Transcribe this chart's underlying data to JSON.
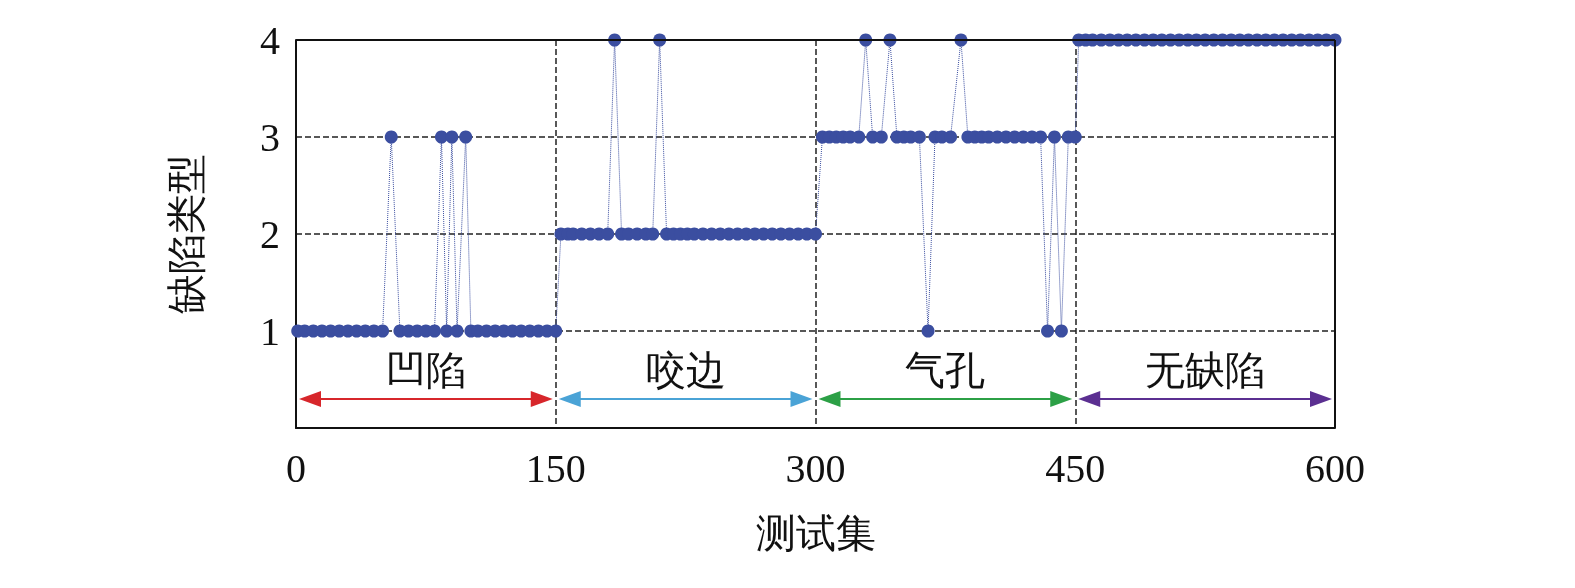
{
  "chart_data": {
    "type": "line",
    "xlabel": "测试集",
    "ylabel": "缺陷类型",
    "xlim": [
      0,
      600
    ],
    "xticks": [
      0,
      150,
      300,
      450,
      600
    ],
    "ylim": [
      0,
      4
    ],
    "yticks": [
      1,
      2,
      3,
      4
    ],
    "grid": true,
    "marker": "circle",
    "line_style": "dotted",
    "series": [
      {
        "color": "#3b4ea0",
        "x": [
          1,
          5,
          10,
          15,
          20,
          25,
          30,
          35,
          40,
          45,
          50,
          55,
          60,
          65,
          70,
          75,
          80,
          84,
          87,
          90,
          93,
          98,
          101,
          105,
          110,
          115,
          120,
          125,
          130,
          135,
          140,
          145,
          150,
          153,
          157,
          160,
          165,
          170,
          175,
          180,
          184,
          188,
          192,
          197,
          202,
          206,
          210,
          214,
          218,
          222,
          226,
          230,
          235,
          240,
          245,
          250,
          255,
          260,
          265,
          270,
          275,
          280,
          285,
          290,
          295,
          300,
          304,
          308,
          312,
          316,
          320,
          325,
          329,
          333,
          338,
          343,
          347,
          351,
          355,
          360,
          365,
          369,
          373,
          378,
          384,
          388,
          392,
          396,
          400,
          405,
          410,
          415,
          420,
          425,
          430,
          434,
          438,
          442,
          446,
          450,
          452,
          456,
          460,
          465,
          470,
          475,
          480,
          485,
          490,
          495,
          500,
          505,
          510,
          515,
          520,
          525,
          530,
          535,
          540,
          545,
          550,
          555,
          560,
          565,
          570,
          575,
          580,
          585,
          590,
          595,
          600
        ],
        "values": [
          1,
          1,
          1,
          1,
          1,
          1,
          1,
          1,
          1,
          1,
          1,
          3,
          1,
          1,
          1,
          1,
          1,
          3,
          1,
          3,
          1,
          3,
          1,
          1,
          1,
          1,
          1,
          1,
          1,
          1,
          1,
          1,
          1,
          2,
          2,
          2,
          2,
          2,
          2,
          2,
          4,
          2,
          2,
          2,
          2,
          2,
          4,
          2,
          2,
          2,
          2,
          2,
          2,
          2,
          2,
          2,
          2,
          2,
          2,
          2,
          2,
          2,
          2,
          2,
          2,
          2,
          3,
          3,
          3,
          3,
          3,
          3,
          4,
          3,
          3,
          4,
          3,
          3,
          3,
          3,
          1,
          3,
          3,
          3,
          4,
          3,
          3,
          3,
          3,
          3,
          3,
          3,
          3,
          3,
          3,
          1,
          3,
          1,
          3,
          3,
          4,
          4,
          4,
          4,
          4,
          4,
          4,
          4,
          4,
          4,
          4,
          4,
          4,
          4,
          4,
          4,
          4,
          4,
          4,
          4,
          4,
          4,
          4,
          4,
          4,
          4,
          4,
          4,
          4,
          4,
          4
        ]
      }
    ],
    "annotations": [
      "凹陷",
      "咬边",
      "气孔",
      "无缺陷"
    ]
  }
}
